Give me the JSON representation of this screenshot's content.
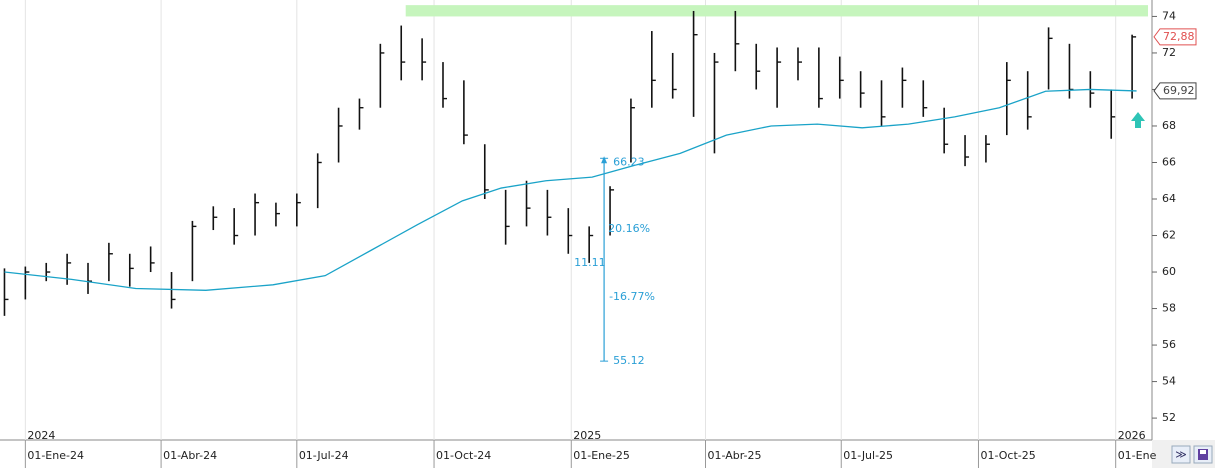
{
  "chart_data": {
    "type": "hlc",
    "xlim": [
      "2023-12-15",
      "2026-01-24"
    ],
    "ylim": [
      50.8,
      74.9
    ],
    "yticks": [
      52,
      54,
      56,
      58,
      60,
      62,
      64,
      66,
      68,
      70,
      72,
      74
    ],
    "xticks": [
      {
        "value": "2024-01-01",
        "label": "01-Ene-24"
      },
      {
        "value": "2024-04-01",
        "label": "01-Abr-24"
      },
      {
        "value": "2024-07-01",
        "label": "01-Jul-24"
      },
      {
        "value": "2024-10-01",
        "label": "01-Oct-24"
      },
      {
        "value": "2025-01-01",
        "label": "01-Ene-25"
      },
      {
        "value": "2025-04-01",
        "label": "01-Abr-25"
      },
      {
        "value": "2025-07-01",
        "label": "01-Jul-25"
      },
      {
        "value": "2025-10-01",
        "label": "01-Oct-25"
      },
      {
        "value": "2026-01-01",
        "label": "01-Ene"
      }
    ],
    "year_ticks": [
      {
        "value": "2024-01-01",
        "label": "2024"
      },
      {
        "value": "2025-01-01",
        "label": "2025"
      },
      {
        "value": "2026-01-01",
        "label": "2026"
      }
    ],
    "bar_color": "#111111",
    "bars": {
      "x": [
        "2023-12-18",
        "2024-01-01",
        "2024-01-15",
        "2024-01-29",
        "2024-02-12",
        "2024-02-26",
        "2024-03-11",
        "2024-03-25",
        "2024-04-08",
        "2024-04-22",
        "2024-05-06",
        "2024-05-20",
        "2024-06-03",
        "2024-06-17",
        "2024-07-01",
        "2024-07-15",
        "2024-07-29",
        "2024-08-12",
        "2024-08-26",
        "2024-09-09",
        "2024-09-23",
        "2024-10-07",
        "2024-10-21",
        "2024-11-04",
        "2024-11-18",
        "2024-12-02",
        "2024-12-16",
        "2024-12-30",
        "2025-01-13",
        "2025-01-27",
        "2025-02-10",
        "2025-02-24",
        "2025-03-10",
        "2025-03-24",
        "2025-04-07",
        "2025-04-21",
        "2025-05-05",
        "2025-05-19",
        "2025-06-02",
        "2025-06-16",
        "2025-06-30",
        "2025-07-14",
        "2025-07-28",
        "2025-08-11",
        "2025-08-25",
        "2025-09-08",
        "2025-09-22",
        "2025-10-06",
        "2025-10-20",
        "2025-11-03",
        "2025-11-17",
        "2025-12-01",
        "2025-12-15",
        "2025-12-29",
        "2026-01-12"
      ],
      "high": [
        60.2,
        60.3,
        60.5,
        61,
        60.5,
        61.6,
        61,
        61.4,
        60,
        62.8,
        63.6,
        63.5,
        64.3,
        63.8,
        64.3,
        66.5,
        69,
        69.5,
        72.5,
        73.5,
        72.8,
        71.5,
        70.5,
        67,
        64.5,
        65,
        64.5,
        63.5,
        62.5,
        64.7,
        69.5,
        73.2,
        72,
        74.3,
        72,
        74.3,
        72.5,
        72.3,
        72.3,
        72.3,
        71.8,
        71,
        70.5,
        71.2,
        70.5,
        69,
        67.5,
        67.5,
        71.5,
        71,
        73.4,
        72.5,
        71,
        70,
        73
      ],
      "low": [
        57.6,
        58.5,
        59.5,
        59.3,
        58.8,
        59.5,
        59.2,
        60,
        58,
        59.5,
        62.3,
        61.5,
        62,
        62.5,
        62.5,
        63.5,
        66,
        67.8,
        69,
        70.5,
        70.5,
        69,
        67,
        64,
        61.5,
        62.5,
        62,
        61,
        60.5,
        62,
        66,
        69,
        69.5,
        68.5,
        66.5,
        71,
        70,
        69,
        70.5,
        69,
        69.5,
        69,
        68,
        69,
        68.5,
        66.5,
        65.8,
        66,
        67.5,
        67.8,
        70,
        69.5,
        69,
        67.3,
        69.5
      ],
      "close": [
        58.5,
        60,
        60,
        60.5,
        59.5,
        61,
        60.2,
        60.5,
        58.5,
        62.5,
        63,
        62,
        63.8,
        63.2,
        63.8,
        66,
        68,
        69,
        72,
        71.5,
        71.5,
        69.5,
        67.5,
        64.5,
        62.5,
        63.5,
        63,
        62,
        62,
        64.5,
        69,
        70.5,
        70,
        73,
        71.5,
        72.5,
        71,
        71.5,
        71.5,
        69.5,
        70.5,
        69.8,
        68.5,
        70.5,
        69,
        67,
        66.3,
        67,
        70.5,
        68.5,
        72.8,
        70,
        69.8,
        68.5,
        72.88
      ]
    },
    "ma": {
      "color": "#1aa3c8",
      "x": [
        "2023-12-18",
        "2024-02-01",
        "2024-03-15",
        "2024-05-01",
        "2024-06-15",
        "2024-07-20",
        "2024-08-20",
        "2024-09-20",
        "2024-10-20",
        "2024-11-15",
        "2024-12-15",
        "2025-01-15",
        "2025-02-15",
        "2025-03-15",
        "2025-04-15",
        "2025-05-15",
        "2025-06-15",
        "2025-07-15",
        "2025-08-15",
        "2025-09-15",
        "2025-10-15",
        "2025-11-15",
        "2025-12-15",
        "2026-01-15"
      ],
      "values": [
        60,
        59.6,
        59.1,
        59,
        59.3,
        59.8,
        61.2,
        62.6,
        63.9,
        64.6,
        65,
        65.2,
        65.9,
        66.5,
        67.5,
        68,
        68.1,
        67.9,
        68.1,
        68.5,
        69,
        69.9,
        70,
        69.92
      ]
    },
    "zone": {
      "x": [
        "2024-09-12",
        "2026-01-24"
      ],
      "range": [
        74,
        74.4
      ],
      "color": "#c6f5bd"
    },
    "price_labels": [
      {
        "value": 72.88,
        "label": "72,88",
        "color": "#e05050"
      },
      {
        "value": 69.92,
        "label": "69,92",
        "color": "#444444"
      }
    ],
    "measure": {
      "x": "2025-01-23",
      "color": "#2a9fd6",
      "high": 66.23,
      "high_label": "66.23",
      "low": 55.12,
      "low_label": "55.12",
      "rise_label": "20.16%",
      "fall_label": "-16.77%",
      "mid_label": "11.11"
    }
  }
}
